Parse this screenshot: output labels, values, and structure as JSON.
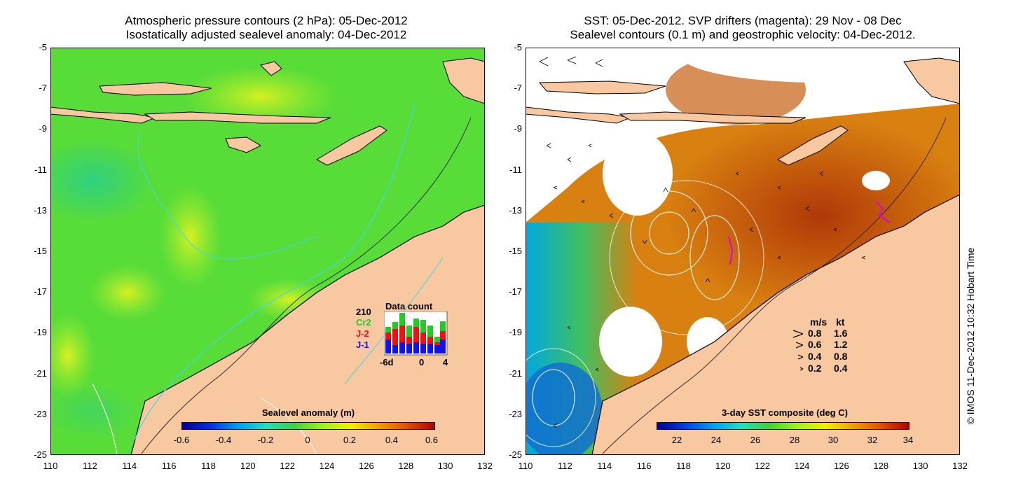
{
  "left_panel": {
    "title_line1": "Atmospheric pressure contours (2 hPa): 05-Dec-2012",
    "title_line2": "Isostatically adjusted sealevel anomaly: 04-Dec-2012",
    "colorbar": {
      "title": "Sealevel anomaly (m)",
      "ticks": [
        "-0.6",
        "-0.4",
        "-0.2",
        "0",
        "0.2",
        "0.4",
        "0.6"
      ]
    },
    "data_count": {
      "total": "210",
      "title": "Data count",
      "satellites": [
        {
          "name": "Cr2",
          "color": "#22cc22"
        },
        {
          "name": "J-2",
          "color": "#ee1111"
        },
        {
          "name": "J-1",
          "color": "#1111ee"
        }
      ],
      "axis_labels": [
        "-6d",
        "0",
        "4"
      ]
    }
  },
  "right_panel": {
    "title_line1": "SST: 05-Dec-2012. SVP drifters (magenta): 29 Nov - 08 Dec",
    "title_line2": "Sealevel contours (0.1 m) and geostrophic velocity: 04-Dec-2012.",
    "colorbar": {
      "title": "3-day SST composite (deg C)",
      "ticks": [
        "22",
        "24",
        "26",
        "28",
        "30",
        "32",
        "34"
      ]
    },
    "velocity_legend": {
      "header_ms": "m/s",
      "header_kt": "kt",
      "rows": [
        {
          "ms": "0.8",
          "kt": "1.6"
        },
        {
          "ms": "0.6",
          "kt": "1.2"
        },
        {
          "ms": "0.4",
          "kt": "0.8"
        },
        {
          "ms": "0.2",
          "kt": "0.4"
        }
      ]
    }
  },
  "axes": {
    "y_ticks": [
      "-5",
      "-7",
      "-9",
      "-11",
      "-13",
      "-15",
      "-17",
      "-19",
      "-21",
      "-23",
      "-25"
    ],
    "x_ticks": [
      "110",
      "112",
      "114",
      "116",
      "118",
      "120",
      "122",
      "124",
      "126",
      "128",
      "130",
      "132"
    ]
  },
  "credit": "© IMOS 11-Dec-2012 10:32 Hobart Time",
  "colors": {
    "land": "#f8c8a0",
    "sla_green": "#58e040",
    "sla_yellow": "#c8f020",
    "sst_orange": "#d88010",
    "sst_red": "#b84008"
  }
}
